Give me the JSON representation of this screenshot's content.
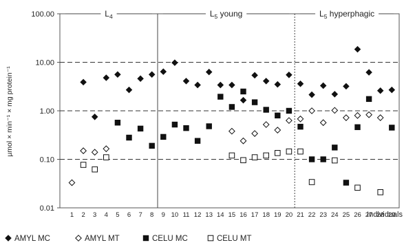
{
  "chart_data": {
    "type": "scatter",
    "yscale": "log",
    "ylim": [
      0.01,
      100
    ],
    "yticks": [
      "0.01",
      "0.10",
      "1.00",
      "10.00",
      "100.00"
    ],
    "ylabel": "µmol × min⁻¹ × mg protein⁻¹",
    "xlabel": "Individuals",
    "x": [
      1,
      2,
      3,
      4,
      5,
      6,
      7,
      8,
      9,
      10,
      11,
      12,
      13,
      14,
      15,
      16,
      17,
      18,
      19,
      20,
      21,
      22,
      23,
      24,
      25,
      26,
      27,
      28,
      29
    ],
    "dashed_reference_lines": [
      0.1,
      1,
      10
    ],
    "sections": [
      {
        "label": "L",
        "sub": "4",
        "suffix": "",
        "from_x": 1,
        "to_x": 8
      },
      {
        "label": "L",
        "sub": "5",
        "suffix": " young",
        "from_x": 9,
        "to_x": 20
      },
      {
        "label": "L",
        "sub": "5",
        "suffix": " hyperphagic",
        "from_x": 21,
        "to_x": 29
      }
    ],
    "series": [
      {
        "name": "AMYL MC",
        "marker": "diamond-filled",
        "values": [
          null,
          3.9,
          0.75,
          4.8,
          5.6,
          2.7,
          4.6,
          5.6,
          6.4,
          9.8,
          4.1,
          3.4,
          6.3,
          3.4,
          3.4,
          1.65,
          5.4,
          4.1,
          3.5,
          5.5,
          3.6,
          2.15,
          3.3,
          2.2,
          3.2,
          18.5,
          6.2,
          2.6,
          2.7
        ]
      },
      {
        "name": "AMYL MT",
        "marker": "diamond-open",
        "values": [
          0.033,
          0.15,
          0.14,
          0.165,
          null,
          null,
          null,
          null,
          null,
          null,
          null,
          null,
          null,
          null,
          0.38,
          0.24,
          0.34,
          0.52,
          0.4,
          0.63,
          0.68,
          1.0,
          0.57,
          1.02,
          0.72,
          0.8,
          0.83,
          0.72,
          null
        ]
      },
      {
        "name": "CELU MC",
        "marker": "square-filled",
        "values": [
          null,
          null,
          null,
          null,
          0.57,
          0.28,
          0.43,
          0.19,
          0.29,
          0.52,
          0.44,
          0.24,
          0.48,
          1.95,
          1.2,
          2.5,
          1.5,
          1.05,
          0.8,
          1.0,
          0.47,
          0.1,
          0.1,
          0.175,
          0.033,
          0.46,
          1.75,
          null,
          0.45
        ]
      },
      {
        "name": "CELU MT",
        "marker": "square-open",
        "values": [
          null,
          0.077,
          0.062,
          0.11,
          null,
          null,
          null,
          null,
          null,
          null,
          null,
          null,
          null,
          null,
          0.12,
          0.096,
          0.11,
          0.12,
          0.135,
          0.145,
          0.145,
          0.034,
          null,
          0.095,
          null,
          0.026,
          null,
          0.021,
          null
        ]
      }
    ],
    "legend_position": "bottom"
  }
}
